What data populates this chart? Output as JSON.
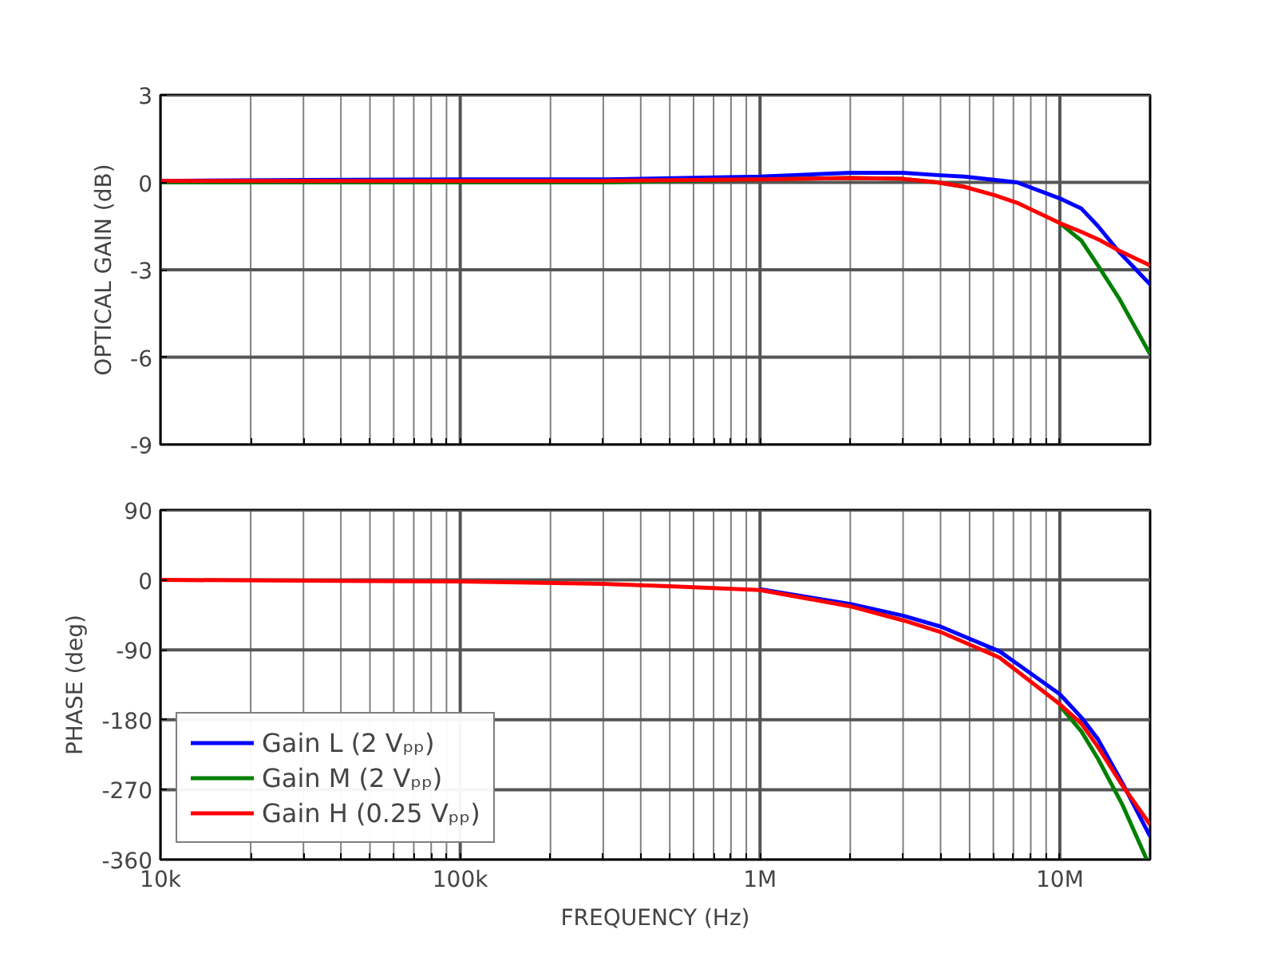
{
  "chart_data": [
    {
      "type": "line",
      "ylabel": "OPTICAL GAIN (dB)",
      "x": [
        10000,
        30000,
        100000,
        300000,
        1000000,
        2000000,
        3000000,
        3900000,
        4800000,
        6100000,
        7200000,
        10000000,
        11800000,
        13400000,
        15800000,
        20000000
      ],
      "series": [
        {
          "color": "#0000ff",
          "values": [
            0.05,
            0.08,
            0.1,
            0.1,
            0.2,
            0.33,
            0.33,
            0.25,
            0.2,
            0.08,
            0,
            -0.55,
            -0.9,
            -1.5,
            -2.4,
            -3.5
          ]
        },
        {
          "color": "#008000",
          "values": [
            0,
            0,
            0,
            0,
            0.1,
            0.15,
            0.12,
            0,
            -0.15,
            null,
            null,
            -1.4,
            -2.0,
            -2.85,
            -4.0,
            -5.9
          ]
        },
        {
          "color": "#ff0000",
          "values": [
            0.05,
            0.05,
            0.05,
            0.05,
            0.1,
            0.15,
            0.12,
            0,
            -0.15,
            -0.45,
            -0.7,
            -1.4,
            -1.7,
            -1.95,
            -2.35,
            -2.85
          ]
        }
      ],
      "xlim": [
        10000,
        20000000
      ],
      "xticks": [
        {
          "value": 10000,
          "label": null
        },
        {
          "value": 20000,
          "label": null
        },
        {
          "value": 30000,
          "label": null
        },
        {
          "value": 40000,
          "label": null
        },
        {
          "value": 50000,
          "label": null
        },
        {
          "value": 60000,
          "label": null
        },
        {
          "value": 70000,
          "label": null
        },
        {
          "value": 80000,
          "label": null
        },
        {
          "value": 90000,
          "label": null
        },
        {
          "value": 100000,
          "label": null
        },
        {
          "value": 200000,
          "label": null
        },
        {
          "value": 300000,
          "label": null
        },
        {
          "value": 400000,
          "label": null
        },
        {
          "value": 500000,
          "label": null
        },
        {
          "value": 600000,
          "label": null
        },
        {
          "value": 700000,
          "label": null
        },
        {
          "value": 800000,
          "label": null
        },
        {
          "value": 900000,
          "label": null
        },
        {
          "value": 1000000,
          "label": null
        },
        {
          "value": 2000000,
          "label": null
        },
        {
          "value": 3000000,
          "label": null
        },
        {
          "value": 4000000,
          "label": null
        },
        {
          "value": 5000000,
          "label": null
        },
        {
          "value": 6000000,
          "label": null
        },
        {
          "value": 7000000,
          "label": null
        },
        {
          "value": 8000000,
          "label": null
        },
        {
          "value": 9000000,
          "label": null
        },
        {
          "value": 10000000,
          "label": null
        }
      ],
      "ylim": [
        -9,
        3
      ],
      "yticks": [
        -9,
        -6,
        -3,
        0,
        3
      ],
      "log": "x",
      "grid": true,
      "tick_labels": "y"
    },
    {
      "type": "line",
      "xlabel": "FREQUENCY (Hz)",
      "ylabel": "PHASE (deg)",
      "x": [
        10000,
        100000,
        300000,
        500000,
        1000000,
        2000000,
        3000000,
        4000000,
        6300000,
        10000000,
        11800000,
        13400000,
        16200000,
        20000000
      ],
      "series": [
        {
          "name": "Gain L (2 Vₚₚ)",
          "color": "#0000ff",
          "values": [
            null,
            null,
            null,
            null,
            -12,
            -31,
            -46,
            -60,
            -92,
            -147,
            -177,
            -205,
            -262,
            -330
          ]
        },
        {
          "name": "Gain M (2 Vₚₚ)",
          "color": "#008000",
          "x": [
            10000000,
            11800000,
            13400000,
            16200000,
            19500000
          ],
          "values": [
            -162,
            -195,
            -230,
            -290,
            -360
          ]
        },
        {
          "name": "Gain H (0.25 Vₚₚ)",
          "color": "#ff0000",
          "values": [
            0,
            -2,
            -5,
            -8,
            -13,
            -34,
            -52,
            -67,
            -100,
            -160,
            -185,
            -215,
            -265,
            -315
          ]
        }
      ],
      "xlim": [
        10000,
        20000000
      ],
      "xticks": [
        {
          "value": 10000,
          "label": "10k"
        },
        {
          "value": 20000,
          "label": null
        },
        {
          "value": 30000,
          "label": null
        },
        {
          "value": 40000,
          "label": null
        },
        {
          "value": 50000,
          "label": null
        },
        {
          "value": 60000,
          "label": null
        },
        {
          "value": 70000,
          "label": null
        },
        {
          "value": 80000,
          "label": null
        },
        {
          "value": 90000,
          "label": null
        },
        {
          "value": 100000,
          "label": "100k"
        },
        {
          "value": 200000,
          "label": null
        },
        {
          "value": 300000,
          "label": null
        },
        {
          "value": 400000,
          "label": null
        },
        {
          "value": 500000,
          "label": null
        },
        {
          "value": 600000,
          "label": null
        },
        {
          "value": 700000,
          "label": null
        },
        {
          "value": 800000,
          "label": null
        },
        {
          "value": 900000,
          "label": null
        },
        {
          "value": 1000000,
          "label": "1M"
        },
        {
          "value": 2000000,
          "label": null
        },
        {
          "value": 3000000,
          "label": null
        },
        {
          "value": 4000000,
          "label": null
        },
        {
          "value": 5000000,
          "label": null
        },
        {
          "value": 6000000,
          "label": null
        },
        {
          "value": 7000000,
          "label": null
        },
        {
          "value": 8000000,
          "label": null
        },
        {
          "value": 9000000,
          "label": null
        },
        {
          "value": 10000000,
          "label": "10M"
        }
      ],
      "ylim": [
        -360,
        90
      ],
      "yticks": [
        -360,
        -270,
        -180,
        -90,
        0,
        90
      ],
      "log": "x",
      "grid": true,
      "legend": "bottom left"
    }
  ]
}
